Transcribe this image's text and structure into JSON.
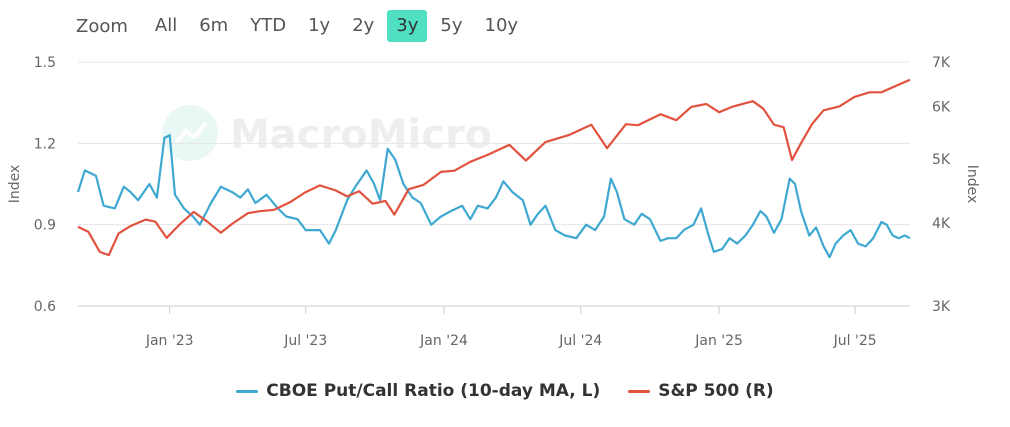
{
  "toolbar": {
    "zoom_label": "Zoom",
    "ranges": [
      "All",
      "6m",
      "YTD",
      "1y",
      "2y",
      "3y",
      "5y",
      "10y"
    ],
    "active_range": "3y"
  },
  "watermark": "MacroMicro",
  "colors": {
    "putcall": "#3ea8d1",
    "sp500": "#e1533f",
    "active_range_bg": "#4fe0c2",
    "grid": "#e6e6e6"
  },
  "chart_data": {
    "type": "line",
    "title": "",
    "x_ticks": [
      "Jan '23",
      "Jul '23",
      "Jan '24",
      "Jul '24",
      "Jan '25",
      "Jul '25"
    ],
    "x_range": [
      "2022-09",
      "2025-09"
    ],
    "left_axis": {
      "label": "Index",
      "ticks": [
        "0.6",
        "0.9",
        "1.2",
        "1.5"
      ],
      "range": [
        0.6,
        1.5
      ]
    },
    "right_axis": {
      "label": "Index",
      "ticks": [
        "3K",
        "4K",
        "5K",
        "6K",
        "7K"
      ],
      "scale": "log",
      "range": [
        3000,
        7000
      ]
    },
    "legend_position": "bottom-center",
    "series": [
      {
        "name": "CBOE Put/Call Ratio (10-day MA, L)",
        "axis": "left",
        "points": [
          [
            "2022-09-01",
            1.02
          ],
          [
            "2022-09-10",
            1.1
          ],
          [
            "2022-09-25",
            1.08
          ],
          [
            "2022-10-05",
            0.97
          ],
          [
            "2022-10-20",
            0.96
          ],
          [
            "2022-11-01",
            1.04
          ],
          [
            "2022-11-10",
            1.02
          ],
          [
            "2022-11-20",
            0.99
          ],
          [
            "2022-12-05",
            1.05
          ],
          [
            "2022-12-15",
            1.0
          ],
          [
            "2022-12-25",
            1.22
          ],
          [
            "2023-01-01",
            1.23
          ],
          [
            "2023-01-08",
            1.01
          ],
          [
            "2023-01-20",
            0.96
          ],
          [
            "2023-02-01",
            0.93
          ],
          [
            "2023-02-10",
            0.9
          ],
          [
            "2023-02-25",
            0.98
          ],
          [
            "2023-03-10",
            1.04
          ],
          [
            "2023-03-25",
            1.02
          ],
          [
            "2023-04-05",
            1.0
          ],
          [
            "2023-04-15",
            1.03
          ],
          [
            "2023-04-25",
            0.98
          ],
          [
            "2023-05-10",
            1.01
          ],
          [
            "2023-05-25",
            0.96
          ],
          [
            "2023-06-05",
            0.93
          ],
          [
            "2023-06-20",
            0.92
          ],
          [
            "2023-07-01",
            0.88
          ],
          [
            "2023-07-20",
            0.88
          ],
          [
            "2023-08-01",
            0.83
          ],
          [
            "2023-08-10",
            0.88
          ],
          [
            "2023-08-25",
            0.99
          ],
          [
            "2023-09-05",
            1.04
          ],
          [
            "2023-09-20",
            1.1
          ],
          [
            "2023-09-30",
            1.05
          ],
          [
            "2023-10-08",
            0.99
          ],
          [
            "2023-10-18",
            1.18
          ],
          [
            "2023-10-28",
            1.14
          ],
          [
            "2023-11-08",
            1.05
          ],
          [
            "2023-11-20",
            1.0
          ],
          [
            "2023-12-01",
            0.98
          ],
          [
            "2023-12-15",
            0.9
          ],
          [
            "2023-12-28",
            0.93
          ],
          [
            "2024-01-10",
            0.95
          ],
          [
            "2024-01-25",
            0.97
          ],
          [
            "2024-02-05",
            0.92
          ],
          [
            "2024-02-15",
            0.97
          ],
          [
            "2024-02-28",
            0.96
          ],
          [
            "2024-03-10",
            1.0
          ],
          [
            "2024-03-20",
            1.06
          ],
          [
            "2024-04-01",
            1.02
          ],
          [
            "2024-04-15",
            0.99
          ],
          [
            "2024-04-25",
            0.9
          ],
          [
            "2024-05-05",
            0.94
          ],
          [
            "2024-05-15",
            0.97
          ],
          [
            "2024-05-28",
            0.88
          ],
          [
            "2024-06-10",
            0.86
          ],
          [
            "2024-06-25",
            0.85
          ],
          [
            "2024-07-08",
            0.9
          ],
          [
            "2024-07-20",
            0.88
          ],
          [
            "2024-08-01",
            0.93
          ],
          [
            "2024-08-10",
            1.07
          ],
          [
            "2024-08-18",
            1.02
          ],
          [
            "2024-08-28",
            0.92
          ],
          [
            "2024-09-10",
            0.9
          ],
          [
            "2024-09-20",
            0.94
          ],
          [
            "2024-10-01",
            0.92
          ],
          [
            "2024-10-15",
            0.84
          ],
          [
            "2024-10-25",
            0.85
          ],
          [
            "2024-11-05",
            0.85
          ],
          [
            "2024-11-15",
            0.88
          ],
          [
            "2024-11-28",
            0.9
          ],
          [
            "2024-12-08",
            0.96
          ],
          [
            "2024-12-18",
            0.86
          ],
          [
            "2024-12-25",
            0.8
          ],
          [
            "2025-01-05",
            0.81
          ],
          [
            "2025-01-15",
            0.85
          ],
          [
            "2025-01-25",
            0.83
          ],
          [
            "2025-02-05",
            0.86
          ],
          [
            "2025-02-15",
            0.9
          ],
          [
            "2025-02-25",
            0.95
          ],
          [
            "2025-03-05",
            0.93
          ],
          [
            "2025-03-15",
            0.87
          ],
          [
            "2025-03-25",
            0.92
          ],
          [
            "2025-04-05",
            1.07
          ],
          [
            "2025-04-12",
            1.05
          ],
          [
            "2025-04-20",
            0.95
          ],
          [
            "2025-05-01",
            0.86
          ],
          [
            "2025-05-10",
            0.89
          ],
          [
            "2025-05-20",
            0.82
          ],
          [
            "2025-05-28",
            0.78
          ],
          [
            "2025-06-05",
            0.83
          ],
          [
            "2025-06-15",
            0.86
          ],
          [
            "2025-06-25",
            0.88
          ],
          [
            "2025-07-05",
            0.83
          ],
          [
            "2025-07-15",
            0.82
          ],
          [
            "2025-07-25",
            0.85
          ],
          [
            "2025-08-05",
            0.91
          ],
          [
            "2025-08-12",
            0.9
          ],
          [
            "2025-08-20",
            0.86
          ],
          [
            "2025-08-28",
            0.85
          ],
          [
            "2025-09-05",
            0.86
          ],
          [
            "2025-09-12",
            0.85
          ]
        ]
      },
      {
        "name": "S&P 500 (R)",
        "axis": "right",
        "points": [
          [
            "2022-09-01",
            3950
          ],
          [
            "2022-09-15",
            3880
          ],
          [
            "2022-09-30",
            3620
          ],
          [
            "2022-10-12",
            3580
          ],
          [
            "2022-10-25",
            3860
          ],
          [
            "2022-11-10",
            3960
          ],
          [
            "2022-11-30",
            4050
          ],
          [
            "2022-12-13",
            4020
          ],
          [
            "2022-12-28",
            3800
          ],
          [
            "2023-01-15",
            3990
          ],
          [
            "2023-02-02",
            4160
          ],
          [
            "2023-02-20",
            4020
          ],
          [
            "2023-03-10",
            3870
          ],
          [
            "2023-03-25",
            3990
          ],
          [
            "2023-04-15",
            4140
          ],
          [
            "2023-05-01",
            4170
          ],
          [
            "2023-05-20",
            4190
          ],
          [
            "2023-06-10",
            4300
          ],
          [
            "2023-06-30",
            4450
          ],
          [
            "2023-07-20",
            4560
          ],
          [
            "2023-08-10",
            4480
          ],
          [
            "2023-08-25",
            4390
          ],
          [
            "2023-09-10",
            4470
          ],
          [
            "2023-09-28",
            4280
          ],
          [
            "2023-10-15",
            4320
          ],
          [
            "2023-10-27",
            4120
          ],
          [
            "2023-11-15",
            4500
          ],
          [
            "2023-12-05",
            4570
          ],
          [
            "2023-12-28",
            4780
          ],
          [
            "2024-01-15",
            4800
          ],
          [
            "2024-02-05",
            4950
          ],
          [
            "2024-02-28",
            5070
          ],
          [
            "2024-03-28",
            5250
          ],
          [
            "2024-04-19",
            4970
          ],
          [
            "2024-05-15",
            5300
          ],
          [
            "2024-06-15",
            5430
          ],
          [
            "2024-07-15",
            5630
          ],
          [
            "2024-08-05",
            5190
          ],
          [
            "2024-08-30",
            5640
          ],
          [
            "2024-09-15",
            5620
          ],
          [
            "2024-10-15",
            5840
          ],
          [
            "2024-11-05",
            5720
          ],
          [
            "2024-11-25",
            5990
          ],
          [
            "2024-12-15",
            6050
          ],
          [
            "2025-01-01",
            5880
          ],
          [
            "2025-01-20",
            6000
          ],
          [
            "2025-02-15",
            6110
          ],
          [
            "2025-03-01",
            5950
          ],
          [
            "2025-03-15",
            5630
          ],
          [
            "2025-03-28",
            5580
          ],
          [
            "2025-04-08",
            4980
          ],
          [
            "2025-04-20",
            5280
          ],
          [
            "2025-05-05",
            5650
          ],
          [
            "2025-05-20",
            5920
          ],
          [
            "2025-06-10",
            6000
          ],
          [
            "2025-06-30",
            6200
          ],
          [
            "2025-07-20",
            6300
          ],
          [
            "2025-08-05",
            6300
          ],
          [
            "2025-08-25",
            6450
          ],
          [
            "2025-09-12",
            6580
          ]
        ]
      }
    ]
  }
}
